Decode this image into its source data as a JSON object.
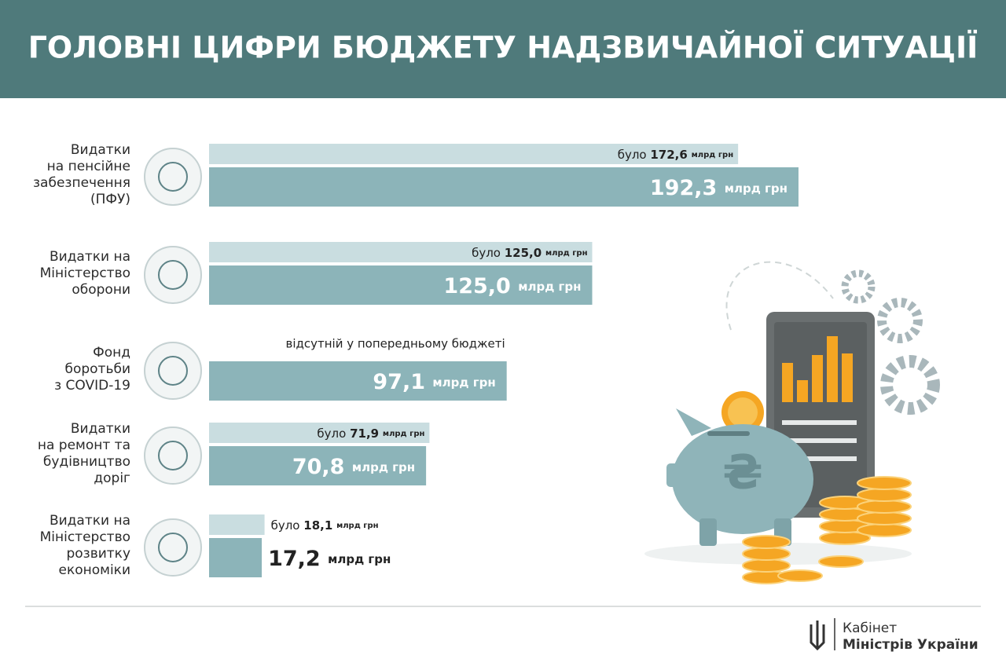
{
  "chart_data": {
    "type": "bar",
    "orientation": "horizontal",
    "title": "ГОЛОВНІ ЦИФРИ БЮДЖЕТУ НАДЗВИЧАЙНОЇ СИТУАЦІЇ",
    "categories": [
      "Видатки\nна пенсійне\nзабезпечення\n(ПФУ)",
      "Видатки на\nМіністерство\nоборони",
      "Фонд\nборотьби\nз COVID-19",
      "Видатки\nна ремонт та\nбудівництво\nдоріг",
      "Видатки на\nМіністерство\nрозвитку\nекономіки"
    ],
    "unit": "млрд грн",
    "missing_note": "відсутній у попередньому бюджеті",
    "xlim": [
      0,
      200
    ],
    "series": [
      {
        "name": "було",
        "color": "#c9dde0",
        "values": [
          172.6,
          125.0,
          null,
          71.9,
          18.1
        ],
        "value_labels": [
          "172,6",
          "125,0",
          null,
          "71,9",
          "18,1"
        ]
      },
      {
        "color": "#8cb4b9",
        "values": [
          192.3,
          125.0,
          97.1,
          70.8,
          17.2
        ],
        "value_labels": [
          "192,3",
          "125,0",
          "97,1",
          "70,8",
          "17,2"
        ]
      }
    ]
  },
  "footer": {
    "line1": "Кабінет",
    "line2": "Міністрів України"
  }
}
